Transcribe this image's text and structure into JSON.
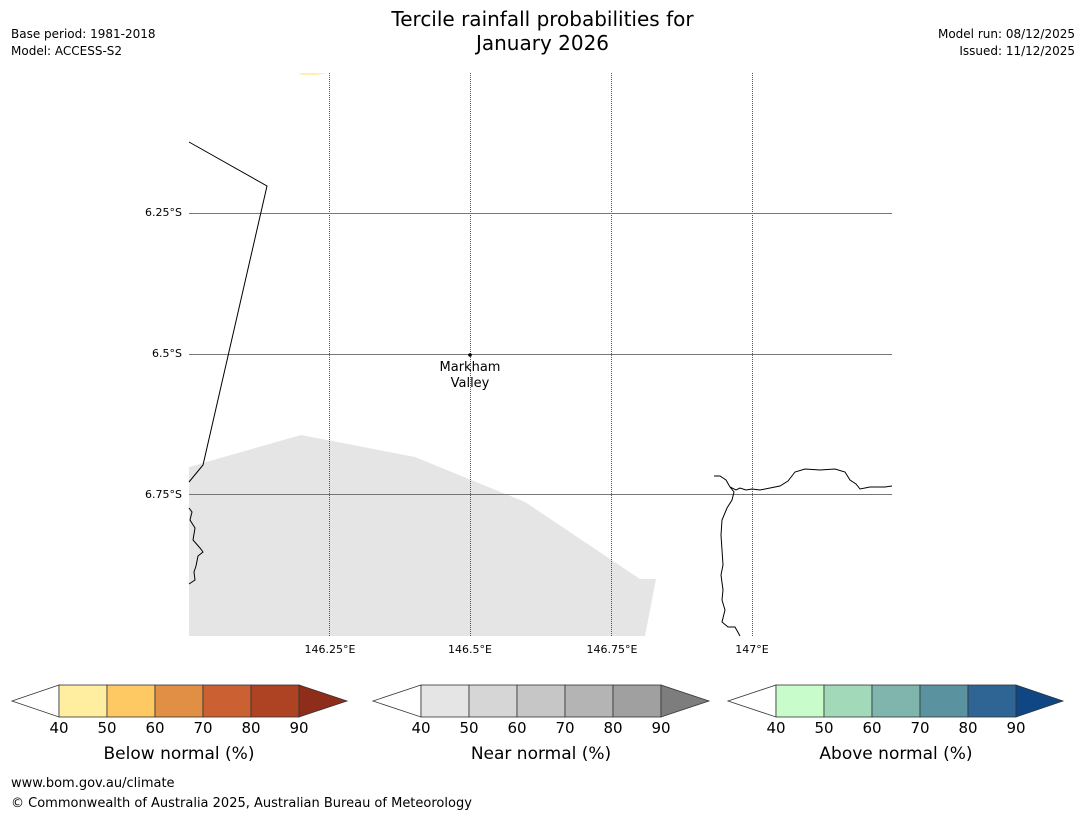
{
  "header": {
    "title_line1": "Tercile rainfall probabilities for",
    "title_line2": "January 2026",
    "base_period": "Base period: 1981-2018",
    "model": "Model: ACCESS-S2",
    "model_run": "Model run: 08/12/2025",
    "issued": "Issued: 11/12/2025"
  },
  "map": {
    "lat_labels": [
      "6.25°S",
      "6.5°S",
      "6.75°S"
    ],
    "lon_labels": [
      "146.25°E",
      "146.5°E",
      "146.75°E",
      "147°E"
    ],
    "place": {
      "name_line1": "Markham",
      "name_line2": "Valley",
      "lon": 146.5,
      "lat": -6.5
    },
    "colors": {
      "near_normal_region": "#e5e5e5",
      "gridline": "#777777",
      "coastline": "#000000",
      "below_normal_fringe": "#fff0a8"
    }
  },
  "colorbars": [
    {
      "title": "Below normal (%)",
      "ticks": [
        "40",
        "50",
        "60",
        "70",
        "80",
        "90"
      ],
      "colors": [
        "#ffeea0",
        "#fec963",
        "#e08f45",
        "#cb6133",
        "#ad4323",
        "#8e2d1a"
      ]
    },
    {
      "title": "Near normal (%)",
      "ticks": [
        "40",
        "50",
        "60",
        "70",
        "80",
        "90"
      ],
      "colors": [
        "#e5e5e5",
        "#d6d6d6",
        "#c6c6c6",
        "#b4b4b4",
        "#a0a0a0",
        "#7d7d7d"
      ]
    },
    {
      "title": "Above normal (%)",
      "ticks": [
        "40",
        "50",
        "60",
        "70",
        "80",
        "90"
      ],
      "colors": [
        "#c8fcca",
        "#a2d9b8",
        "#7fb5ad",
        "#5b929f",
        "#2f6595",
        "#0f4784"
      ]
    }
  ],
  "footer": {
    "url": "www.bom.gov.au/climate",
    "copyright": "© Commonwealth of Australia 2025, Australian Bureau of Meteorology"
  }
}
